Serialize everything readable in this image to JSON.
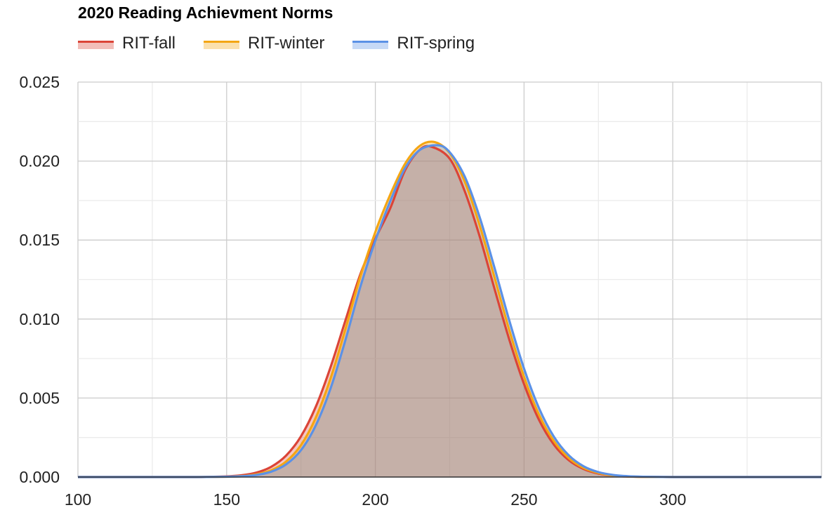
{
  "chart_data": {
    "type": "area",
    "title": "2020 Reading Achievment Norms",
    "xlabel": "",
    "ylabel": "",
    "xlim": [
      100,
      350
    ],
    "ylim": [
      0,
      0.025
    ],
    "x_ticks": [
      "100",
      "150",
      "200",
      "250",
      "300"
    ],
    "y_ticks": [
      "0.000",
      "0.005",
      "0.010",
      "0.015",
      "0.020",
      "0.025"
    ],
    "grid": true,
    "legend_position": "top-left",
    "series": [
      {
        "name": "RIT-fall",
        "color": "#db4437",
        "x": [
          100,
          110,
          120,
          130,
          140,
          150,
          155,
          160,
          165,
          170,
          175,
          180,
          185,
          190,
          195,
          200,
          205,
          210,
          215,
          219,
          225,
          230,
          235,
          240,
          245,
          250,
          255,
          260,
          265,
          270,
          275,
          280,
          285,
          290,
          300,
          310,
          320,
          330,
          340,
          350
        ],
        "y": [
          0,
          0,
          0,
          0,
          0,
          4e-05,
          0.00011,
          0.00028,
          0.00065,
          0.00136,
          0.00258,
          0.00446,
          0.00699,
          0.00995,
          0.01286,
          0.01508,
          0.01701,
          0.01942,
          0.02073,
          0.0209,
          0.02015,
          0.01812,
          0.01528,
          0.01196,
          0.00872,
          0.00588,
          0.00363,
          0.00206,
          0.00107,
          0.00051,
          0.00022,
          9e-05,
          3e-05,
          1e-05,
          0,
          0,
          0,
          0,
          0,
          0
        ]
      },
      {
        "name": "RIT-winter",
        "color": "#f4a614",
        "x": [
          100,
          110,
          120,
          130,
          140,
          150,
          155,
          160,
          165,
          170,
          175,
          180,
          185,
          190,
          195,
          200,
          205,
          210,
          215,
          220,
          225,
          230,
          235,
          240,
          245,
          250,
          255,
          260,
          265,
          270,
          275,
          280,
          285,
          290,
          300,
          310,
          320,
          330,
          340,
          350
        ],
        "y": [
          0,
          0,
          0,
          0,
          0,
          2e-05,
          6e-05,
          0.00017,
          0.00043,
          0.00098,
          0.00202,
          0.00377,
          0.00628,
          0.00941,
          0.01272,
          0.01551,
          0.01787,
          0.01983,
          0.02097,
          0.0212,
          0.0205,
          0.01872,
          0.01597,
          0.01268,
          0.00932,
          0.00634,
          0.00396,
          0.00228,
          0.00121,
          0.00058,
          0.00026,
          0.0001,
          4e-05,
          1e-05,
          0,
          0,
          0,
          0,
          0,
          0
        ]
      },
      {
        "name": "RIT-spring",
        "color": "#5b91e6",
        "x": [
          100,
          110,
          120,
          130,
          140,
          150,
          155,
          160,
          165,
          170,
          175,
          180,
          185,
          190,
          195,
          200,
          205,
          210,
          215,
          221,
          225,
          230,
          235,
          240,
          245,
          250,
          255,
          260,
          265,
          270,
          275,
          280,
          285,
          290,
          300,
          310,
          320,
          330,
          340,
          350
        ],
        "y": [
          0,
          0,
          0,
          0,
          0,
          2e-05,
          5e-05,
          0.00013,
          0.00034,
          0.0008,
          0.0017,
          0.00328,
          0.00564,
          0.00871,
          0.01207,
          0.01497,
          0.01746,
          0.01955,
          0.02071,
          0.021,
          0.02056,
          0.01904,
          0.01649,
          0.01329,
          0.00993,
          0.00686,
          0.00437,
          0.00256,
          0.00138,
          0.00068,
          0.00031,
          0.00013,
          5e-05,
          2e-05,
          0,
          0,
          0,
          0,
          0,
          0
        ]
      }
    ]
  }
}
